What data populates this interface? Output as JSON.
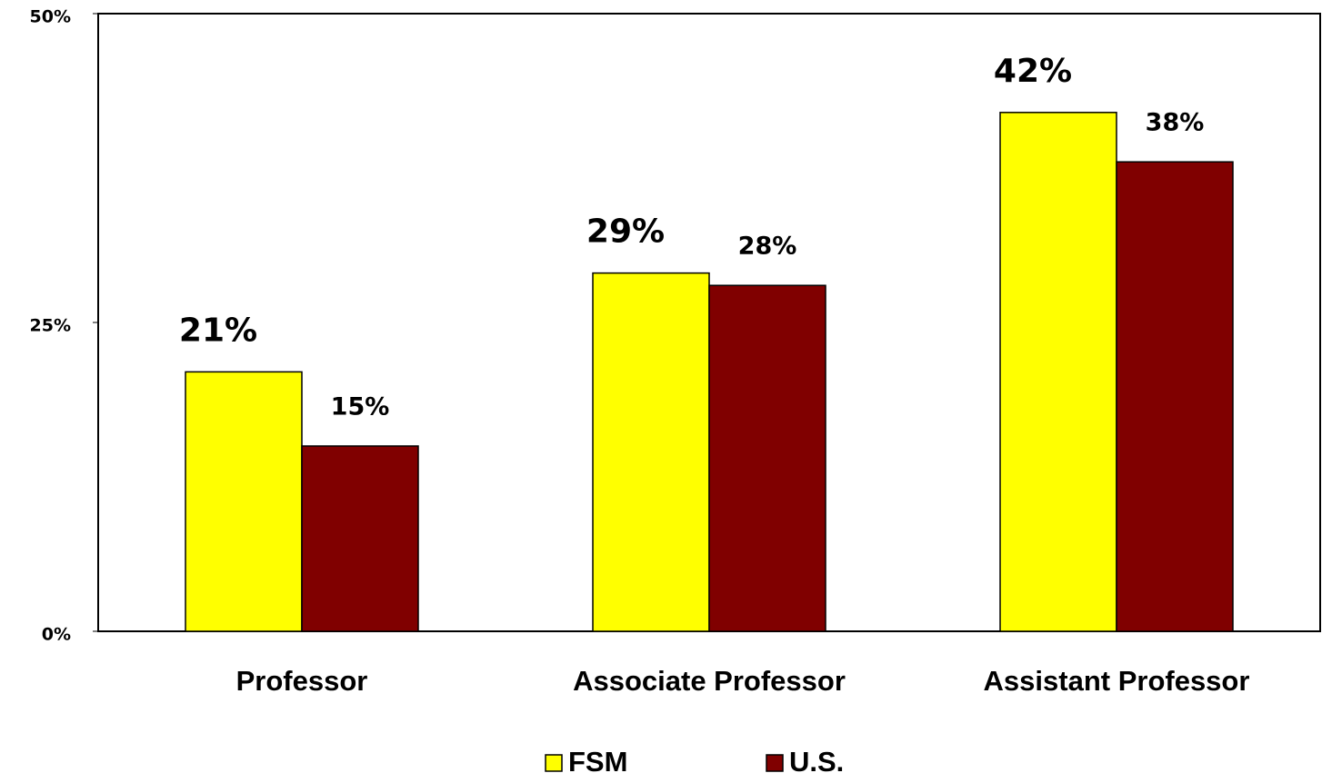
{
  "chart_data": {
    "type": "bar",
    "categories": [
      "Professor",
      "Associate Professor",
      "Assistant Professor"
    ],
    "series": [
      {
        "name": "FSM",
        "color": "#ffff00",
        "values": [
          21,
          29,
          42
        ],
        "value_labels": [
          "21%",
          "29%",
          "42%"
        ]
      },
      {
        "name": "U.S.",
        "color": "#800000",
        "values": [
          15,
          28,
          38
        ],
        "value_labels": [
          "15%",
          "28%",
          "38%"
        ]
      }
    ],
    "ylim": [
      0,
      50
    ],
    "yticks": [
      {
        "value": 0,
        "label": "0%"
      },
      {
        "value": 25,
        "label": "25%"
      },
      {
        "value": 50,
        "label": "50%"
      }
    ],
    "legend": "bottom"
  }
}
